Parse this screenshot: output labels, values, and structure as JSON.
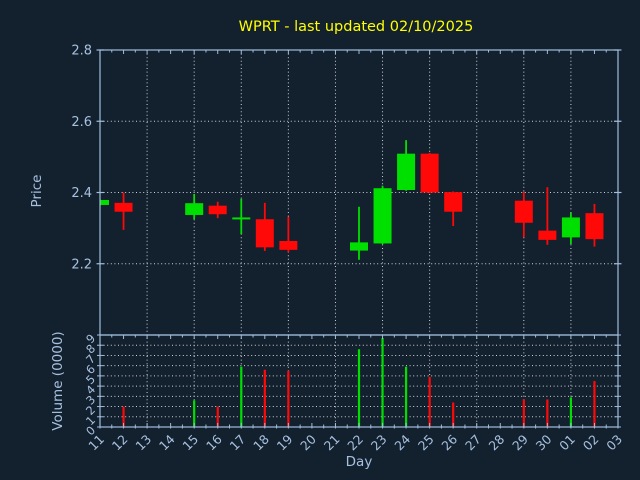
{
  "colors": {
    "background": "#13202e",
    "spine": "#9fbedd",
    "text": "#a6c1e0",
    "grid": "#cfd4da",
    "up": "#00e000",
    "down": "#ff0808",
    "title": "#ffff00"
  },
  "chart_data": {
    "type": "candlestick",
    "title": "WPRT - last updated 02/10/2025",
    "xlabel": "Day",
    "price_axis": {
      "label": "Price",
      "range": [
        2.0,
        2.8
      ],
      "ticks": [
        2.2,
        2.4,
        2.6,
        2.8
      ]
    },
    "volume_axis": {
      "label": "Volume (0000)",
      "range": [
        0,
        9
      ],
      "ticks": [
        0,
        1,
        2,
        3,
        4,
        5,
        6,
        7,
        8,
        9
      ]
    },
    "x_categories": [
      "11",
      "12",
      "13",
      "14",
      "15",
      "16",
      "17",
      "18",
      "19",
      "20",
      "21",
      "22",
      "23",
      "24",
      "25",
      "26",
      "27",
      "28",
      "29",
      "30",
      "01",
      "02",
      "03"
    ],
    "grid_line_indices": [
      2,
      4,
      6,
      8,
      10,
      12,
      14,
      16,
      18,
      20
    ],
    "grid": "dotted",
    "ohlcv": [
      {
        "day": "11",
        "x": 0,
        "open": 2.365,
        "high": 2.38,
        "low": 2.364,
        "close": 2.379,
        "volume": 0,
        "dir": "up"
      },
      {
        "day": "12",
        "x": 1,
        "open": 2.371,
        "high": 2.4,
        "low": 2.295,
        "close": 2.346,
        "volume": 2.0,
        "dir": "down"
      },
      {
        "day": "15",
        "x": 4,
        "open": 2.337,
        "high": 2.395,
        "low": 2.325,
        "close": 2.37,
        "volume": 2.6,
        "dir": "up"
      },
      {
        "day": "16",
        "x": 5,
        "open": 2.363,
        "high": 2.374,
        "low": 2.328,
        "close": 2.339,
        "volume": 2.0,
        "dir": "down"
      },
      {
        "day": "17",
        "x": 6,
        "open": 2.326,
        "high": 2.382,
        "low": 2.283,
        "close": 2.33,
        "volume": 5.9,
        "dir": "up"
      },
      {
        "day": "18",
        "x": 7,
        "open": 2.325,
        "high": 2.371,
        "low": 2.236,
        "close": 2.246,
        "volume": 5.6,
        "dir": "down"
      },
      {
        "day": "19",
        "x": 8,
        "open": 2.264,
        "high": 2.332,
        "low": 2.232,
        "close": 2.239,
        "volume": 5.5,
        "dir": "down"
      },
      {
        "day": "22",
        "x": 11,
        "open": 2.237,
        "high": 2.36,
        "low": 2.211,
        "close": 2.26,
        "volume": 7.6,
        "dir": "up"
      },
      {
        "day": "23",
        "x": 12,
        "open": 2.257,
        "high": 2.419,
        "low": 2.255,
        "close": 2.412,
        "volume": 8.7,
        "dir": "up"
      },
      {
        "day": "24",
        "x": 13,
        "open": 2.407,
        "high": 2.547,
        "low": 2.405,
        "close": 2.509,
        "volume": 5.9,
        "dir": "up"
      },
      {
        "day": "25",
        "x": 14,
        "open": 2.509,
        "high": 2.511,
        "low": 2.398,
        "close": 2.4,
        "volume": 4.9,
        "dir": "down"
      },
      {
        "day": "26",
        "x": 15,
        "open": 2.401,
        "high": 2.403,
        "low": 2.306,
        "close": 2.346,
        "volume": 2.4,
        "dir": "down"
      },
      {
        "day": "29",
        "x": 18,
        "open": 2.377,
        "high": 2.402,
        "low": 2.274,
        "close": 2.315,
        "volume": 2.7,
        "dir": "down"
      },
      {
        "day": "30",
        "x": 19,
        "open": 2.293,
        "high": 2.415,
        "low": 2.253,
        "close": 2.267,
        "volume": 2.7,
        "dir": "down"
      },
      {
        "day": "01",
        "x": 20,
        "open": 2.274,
        "high": 2.343,
        "low": 2.255,
        "close": 2.33,
        "volume": 2.9,
        "dir": "up"
      },
      {
        "day": "02",
        "x": 21,
        "open": 2.342,
        "high": 2.368,
        "low": 2.248,
        "close": 2.269,
        "volume": 4.5,
        "dir": "down"
      }
    ]
  }
}
